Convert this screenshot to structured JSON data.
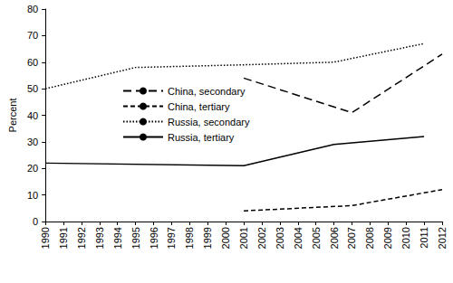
{
  "chart_data": {
    "type": "line",
    "y_label": "Percent",
    "xlim": [
      1990,
      2012
    ],
    "xticks": [
      1990,
      1991,
      1992,
      1993,
      1994,
      1995,
      1996,
      1997,
      1998,
      1999,
      2000,
      2001,
      2002,
      2003,
      2004,
      2005,
      2006,
      2007,
      2008,
      2009,
      2010,
      2011,
      2012
    ],
    "ylim": [
      0,
      80
    ],
    "yticks": [
      0,
      10,
      20,
      30,
      40,
      50,
      60,
      70,
      80
    ],
    "grid": false,
    "legend": "upper left",
    "series": [
      {
        "name": "China, secondary",
        "color": "#000000",
        "line_style": "longdash",
        "x": [
          2001,
          2007,
          2012
        ],
        "values": [
          54,
          41,
          63
        ]
      },
      {
        "name": "China, tertiary",
        "color": "#000000",
        "line_style": "dash",
        "x": [
          2001,
          2007,
          2012
        ],
        "values": [
          4,
          6,
          12
        ]
      },
      {
        "name": "Russia, secondary",
        "color": "#000000",
        "line_style": "dot",
        "x": [
          1990,
          1995,
          2001,
          2006,
          2011
        ],
        "values": [
          50,
          58,
          59,
          60,
          67
        ]
      },
      {
        "name": "Russia, tertiary",
        "color": "#000000",
        "line_style": "solid",
        "x": [
          1990,
          2001,
          2006,
          2011
        ],
        "values": [
          22,
          21,
          29,
          32
        ]
      }
    ]
  }
}
